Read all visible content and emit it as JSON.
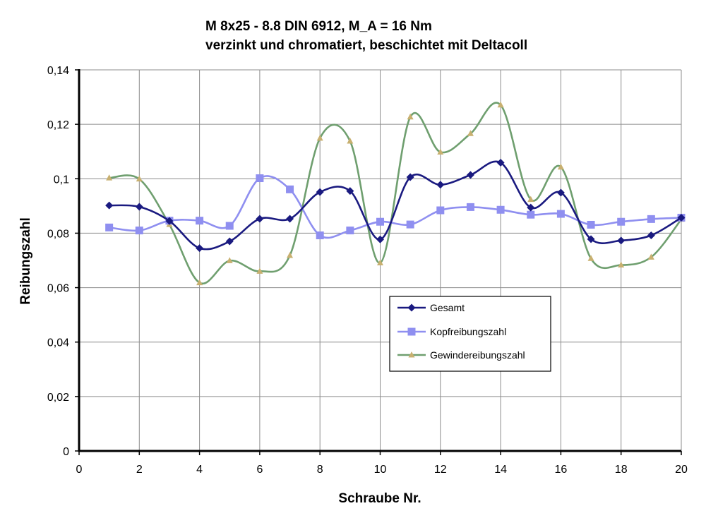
{
  "chart_data": {
    "type": "line",
    "title": "M 8x25 - 8.8 DIN 6912,  M_A = 16 Nm",
    "subtitle": "verzinkt und chromatiert, beschichtet mit Deltacoll",
    "xlabel": "Schraube Nr.",
    "ylabel": "Reibungszahl",
    "xlim": [
      0,
      20
    ],
    "ylim": [
      0,
      0.14
    ],
    "x_ticks": [
      0,
      2,
      4,
      6,
      8,
      10,
      12,
      14,
      16,
      18,
      20
    ],
    "x_tick_labels": [
      "0",
      "2",
      "4",
      "6",
      "8",
      "10",
      "12",
      "14",
      "16",
      "18",
      "20"
    ],
    "y_ticks": [
      0,
      0.02,
      0.04,
      0.06,
      0.08,
      0.1,
      0.12,
      0.14
    ],
    "y_tick_labels": [
      "0",
      "0,02",
      "0,04",
      "0,06",
      "0,08",
      "0,1",
      "0,12",
      "0,14"
    ],
    "grid": true,
    "legend_position": "center-right",
    "x": [
      1,
      2,
      3,
      4,
      5,
      6,
      7,
      8,
      9,
      10,
      11,
      12,
      13,
      14,
      15,
      16,
      17,
      18,
      19,
      20
    ],
    "series": [
      {
        "name": "Gesamt",
        "marker": "diamond",
        "color": "#1a1a80",
        "values": [
          0.0902,
          0.0897,
          0.0845,
          0.0745,
          0.077,
          0.0853,
          0.0853,
          0.0951,
          0.0955,
          0.0777,
          0.1006,
          0.0978,
          0.1014,
          0.1059,
          0.0894,
          0.0949,
          0.0778,
          0.0773,
          0.0792,
          0.0857
        ]
      },
      {
        "name": "Kopfreibungszahl",
        "marker": "square",
        "color": "#8f8ff0",
        "values": [
          0.0821,
          0.081,
          0.0846,
          0.0846,
          0.0827,
          0.1002,
          0.0961,
          0.0792,
          0.081,
          0.0842,
          0.0832,
          0.0884,
          0.0896,
          0.0886,
          0.0868,
          0.0871,
          0.0831,
          0.0842,
          0.0852,
          0.0857
        ]
      },
      {
        "name": "Gewindereibungszahl",
        "marker": "triangle",
        "color": "#6f9f6f",
        "marker_color": "#c8b070",
        "values": [
          0.1003,
          0.0999,
          0.0832,
          0.0618,
          0.0699,
          0.066,
          0.0718,
          0.1149,
          0.1138,
          0.0691,
          0.1227,
          0.1098,
          0.1166,
          0.1271,
          0.0924,
          0.1043,
          0.0707,
          0.0683,
          0.0712,
          0.0851
        ]
      }
    ]
  }
}
